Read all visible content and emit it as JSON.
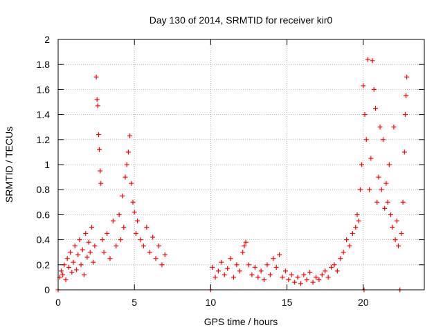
{
  "chart_data": {
    "type": "scatter",
    "title": "Day 130 of 2014, SRMTID for receiver kir0",
    "xlabel": "GPS time / hours",
    "ylabel": "SRMTID / TECUs",
    "xlim": [
      0,
      24
    ],
    "ylim": [
      0,
      2
    ],
    "x_ticks": [
      0,
      5,
      10,
      15,
      20
    ],
    "x_tick_labels": [
      "0",
      "5",
      "10",
      "15",
      "20"
    ],
    "y_ticks": [
      0,
      0.2,
      0.4,
      0.6,
      0.8,
      1,
      1.2,
      1.4,
      1.6,
      1.8,
      2
    ],
    "y_tick_labels": [
      "0",
      "0.2",
      "0.4",
      "0.6",
      "0.8",
      "1",
      "1.2",
      "1.4",
      "1.6",
      "1.8",
      "2"
    ],
    "grid": true,
    "marker": "+",
    "color": "#ff0000",
    "series": [
      {
        "name": "SRMTID",
        "points": [
          [
            0.0,
            0.0
          ],
          [
            0.1,
            0.1
          ],
          [
            0.2,
            0.15
          ],
          [
            0.3,
            0.12
          ],
          [
            0.4,
            0.2
          ],
          [
            0.5,
            0.08
          ],
          [
            0.6,
            0.25
          ],
          [
            0.7,
            0.18
          ],
          [
            0.8,
            0.3
          ],
          [
            0.9,
            0.14
          ],
          [
            1.0,
            0.22
          ],
          [
            1.1,
            0.35
          ],
          [
            1.2,
            0.16
          ],
          [
            1.3,
            0.28
          ],
          [
            1.4,
            0.4
          ],
          [
            1.5,
            0.2
          ],
          [
            1.6,
            0.32
          ],
          [
            1.7,
            0.12
          ],
          [
            1.8,
            0.45
          ],
          [
            1.9,
            0.26
          ],
          [
            2.0,
            0.38
          ],
          [
            2.1,
            0.3
          ],
          [
            2.2,
            0.5
          ],
          [
            2.3,
            0.22
          ],
          [
            2.4,
            0.35
          ],
          [
            2.5,
            1.7
          ],
          [
            2.55,
            1.52
          ],
          [
            2.6,
            1.47
          ],
          [
            2.65,
            1.24
          ],
          [
            2.7,
            1.12
          ],
          [
            2.75,
            0.95
          ],
          [
            2.8,
            0.85
          ],
          [
            2.9,
            0.4
          ],
          [
            3.0,
            0.3
          ],
          [
            3.2,
            0.45
          ],
          [
            3.4,
            0.25
          ],
          [
            3.6,
            0.55
          ],
          [
            3.8,
            0.35
          ],
          [
            4.0,
            0.6
          ],
          [
            4.1,
            0.4
          ],
          [
            4.2,
            0.75
          ],
          [
            4.3,
            0.5
          ],
          [
            4.4,
            0.9
          ],
          [
            4.5,
            1.0
          ],
          [
            4.6,
            1.1
          ],
          [
            4.7,
            1.23
          ],
          [
            4.8,
            0.85
          ],
          [
            4.9,
            0.7
          ],
          [
            5.0,
            0.62
          ],
          [
            5.1,
            0.45
          ],
          [
            5.2,
            0.55
          ],
          [
            5.4,
            0.4
          ],
          [
            5.6,
            0.35
          ],
          [
            5.8,
            0.5
          ],
          [
            6.0,
            0.3
          ],
          [
            6.2,
            0.42
          ],
          [
            6.4,
            0.25
          ],
          [
            6.6,
            0.35
          ],
          [
            6.8,
            0.2
          ],
          [
            7.0,
            0.28
          ],
          [
            10.0,
            0.0
          ],
          [
            10.1,
            0.18
          ],
          [
            10.3,
            0.1
          ],
          [
            10.5,
            0.15
          ],
          [
            10.7,
            0.22
          ],
          [
            10.9,
            0.12
          ],
          [
            11.1,
            0.17
          ],
          [
            11.3,
            0.25
          ],
          [
            11.5,
            0.1
          ],
          [
            11.7,
            0.2
          ],
          [
            11.9,
            0.15
          ],
          [
            12.1,
            0.3
          ],
          [
            12.2,
            0.35
          ],
          [
            12.3,
            0.38
          ],
          [
            12.5,
            0.2
          ],
          [
            12.7,
            0.12
          ],
          [
            12.9,
            0.18
          ],
          [
            13.1,
            0.1
          ],
          [
            13.3,
            0.15
          ],
          [
            13.5,
            0.08
          ],
          [
            13.7,
            0.2
          ],
          [
            13.9,
            0.12
          ],
          [
            14.1,
            0.25
          ],
          [
            14.3,
            0.18
          ],
          [
            14.5,
            0.28
          ],
          [
            14.7,
            0.1
          ],
          [
            14.9,
            0.15
          ],
          [
            15.1,
            0.08
          ],
          [
            15.3,
            0.12
          ],
          [
            15.5,
            0.06
          ],
          [
            15.7,
            0.1
          ],
          [
            15.9,
            0.05
          ],
          [
            16.1,
            0.12
          ],
          [
            16.3,
            0.08
          ],
          [
            16.5,
            0.14
          ],
          [
            16.7,
            0.06
          ],
          [
            16.9,
            0.1
          ],
          [
            17.1,
            0.08
          ],
          [
            17.3,
            0.12
          ],
          [
            17.5,
            0.15
          ],
          [
            17.7,
            0.1
          ],
          [
            17.9,
            0.18
          ],
          [
            18.1,
            0.2
          ],
          [
            18.3,
            0.15
          ],
          [
            18.5,
            0.25
          ],
          [
            18.7,
            0.3
          ],
          [
            18.9,
            0.4
          ],
          [
            19.1,
            0.35
          ],
          [
            19.3,
            0.45
          ],
          [
            19.5,
            0.5
          ],
          [
            19.6,
            0.6
          ],
          [
            19.7,
            0.55
          ],
          [
            19.8,
            0.8
          ],
          [
            19.9,
            1.0
          ],
          [
            20.0,
            1.63
          ],
          [
            20.05,
            0.0
          ],
          [
            20.1,
            1.4
          ],
          [
            20.2,
            1.2
          ],
          [
            20.3,
            1.84
          ],
          [
            20.4,
            0.8
          ],
          [
            20.5,
            1.05
          ],
          [
            20.6,
            1.83
          ],
          [
            20.7,
            1.6
          ],
          [
            20.8,
            1.45
          ],
          [
            20.9,
            0.7
          ],
          [
            21.0,
            0.9
          ],
          [
            21.1,
            1.3
          ],
          [
            21.2,
            0.8
          ],
          [
            21.3,
            1.2
          ],
          [
            21.4,
            0.65
          ],
          [
            21.5,
            0.85
          ],
          [
            21.6,
            0.7
          ],
          [
            21.7,
            1.0
          ],
          [
            21.8,
            0.6
          ],
          [
            21.9,
            0.5
          ],
          [
            22.0,
            1.3
          ],
          [
            22.1,
            0.4
          ],
          [
            22.2,
            0.55
          ],
          [
            22.3,
            0.35
          ],
          [
            22.4,
            0.0
          ],
          [
            22.5,
            0.45
          ],
          [
            22.6,
            0.7
          ],
          [
            22.7,
            1.1
          ],
          [
            22.75,
            1.4
          ],
          [
            22.8,
            1.55
          ],
          [
            22.85,
            1.7
          ]
        ]
      }
    ]
  }
}
